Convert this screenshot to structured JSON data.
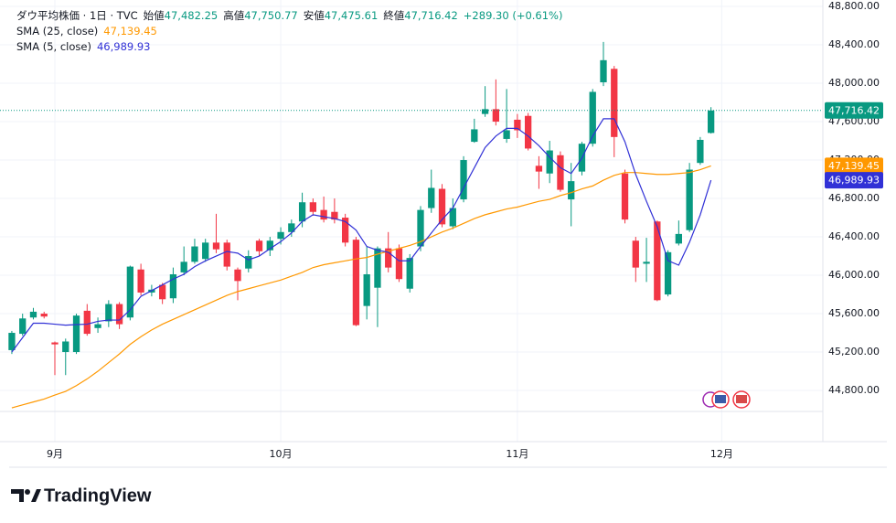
{
  "chart_data": {
    "type": "candlestick",
    "ohlc_legend": {
      "title": "ダウ平均株価 · 1日 · TVC",
      "fields": [
        {
          "label": "始値",
          "value_label": "47,482.25"
        },
        {
          "label": "高値",
          "value_label": "47,750.77"
        },
        {
          "label": "安値",
          "value_label": "47,475.61"
        },
        {
          "label": "終値",
          "value_label": "47,716.42"
        }
      ],
      "change": "+289.30 (+0.61%)"
    },
    "xlim": [
      -1.1,
      75.4
    ],
    "xticks": [
      {
        "value": 4,
        "label": "9月"
      },
      {
        "value": 25,
        "label": "10月"
      },
      {
        "value": 47,
        "label": "11月"
      },
      {
        "value": 66,
        "label": "12月"
      }
    ],
    "ylim": [
      44267,
      48867
    ],
    "yticks": [
      {
        "value": 44800,
        "label": "44,800.00"
      },
      {
        "value": 45200,
        "label": "45,200.00"
      },
      {
        "value": 45600,
        "label": "45,600.00"
      },
      {
        "value": 46000,
        "label": "46,000.00"
      },
      {
        "value": 46400,
        "label": "46,400.00"
      },
      {
        "value": 46800,
        "label": "46,800.00"
      },
      {
        "value": 47200,
        "label": "47,200.00"
      },
      {
        "value": 47600,
        "label": "47,600.00"
      },
      {
        "value": 48000,
        "label": "48,000.00"
      },
      {
        "value": 48400,
        "label": "48,400.00"
      },
      {
        "value": 48800,
        "label": "48,800.00"
      }
    ],
    "grid": true,
    "series": [
      {
        "type": "candlestick",
        "up_color": "#089981",
        "down_color": "#f23645",
        "last_value_label": "47,716.42",
        "open": [
          45220,
          45390,
          45560,
          45600,
          45300,
          45200,
          45200,
          45630,
          45450,
          45520,
          45700,
          45560,
          46060,
          45820,
          45900,
          45760,
          46030,
          46140,
          46170,
          46340,
          46340,
          46060,
          46070,
          46360,
          46260,
          46380,
          46450,
          46560,
          46760,
          46680,
          46660,
          46600,
          46370,
          45680,
          45870,
          46280,
          46280,
          45860,
          46300,
          46700,
          46900,
          46510,
          46790,
          47390,
          47680,
          47730,
          47420,
          47620,
          47660,
          47140,
          47060,
          47250,
          46790,
          47080,
          47370,
          48010,
          48150,
          47060,
          46360,
          46120,
          46560,
          45800,
          46330,
          46470,
          47170,
          47482.25
        ],
        "high": [
          45420,
          45600,
          45660,
          45620,
          45310,
          45340,
          45600,
          45700,
          45560,
          45740,
          45720,
          46100,
          46120,
          45900,
          45920,
          46080,
          46300,
          46380,
          46380,
          46640,
          46370,
          46080,
          46260,
          46380,
          46400,
          46500,
          46580,
          46860,
          46800,
          46820,
          46800,
          46640,
          46400,
          46300,
          46300,
          46450,
          46320,
          46220,
          46720,
          47100,
          46950,
          46800,
          47240,
          47630,
          47970,
          48040,
          47940,
          47680,
          47690,
          47240,
          47400,
          47290,
          47170,
          47390,
          47940,
          48430,
          48180,
          47100,
          46400,
          46390,
          46570,
          46260,
          46570,
          47170,
          47440,
          47750.77
        ],
        "low": [
          45180,
          45370,
          45540,
          45550,
          44960,
          44960,
          45180,
          45370,
          45400,
          45460,
          45440,
          45530,
          45790,
          45780,
          45700,
          45710,
          46000,
          46120,
          46140,
          46230,
          46050,
          45740,
          46030,
          46200,
          46200,
          46320,
          46400,
          46500,
          46620,
          46550,
          46540,
          46300,
          45470,
          45540,
          45460,
          46030,
          45930,
          45820,
          46250,
          46650,
          46500,
          46480,
          46760,
          47380,
          47650,
          47560,
          47380,
          47430,
          47300,
          46900,
          46960,
          46870,
          46510,
          47040,
          47340,
          47970,
          47230,
          46540,
          45930,
          45930,
          45730,
          45780,
          46310,
          46450,
          47150,
          47475.61
        ],
        "close": [
          45400,
          45550,
          45620,
          45570,
          45280,
          45310,
          45580,
          45390,
          45490,
          45700,
          45490,
          46090,
          45820,
          45850,
          45750,
          46010,
          46140,
          46300,
          46340,
          46270,
          46090,
          45940,
          46200,
          46250,
          46360,
          46450,
          46540,
          46760,
          46660,
          46580,
          46580,
          46340,
          45480,
          46010,
          46280,
          46080,
          45960,
          46180,
          46680,
          46910,
          46530,
          46700,
          47200,
          47520,
          47730,
          47600,
          47510,
          47510,
          47320,
          47080,
          47300,
          46890,
          46980,
          47370,
          47910,
          48240,
          47440,
          46580,
          46080,
          46140,
          45740,
          46240,
          46430,
          47100,
          47410,
          47716.42
        ]
      },
      {
        "type": "line",
        "name": "SMA (25, close)",
        "color": "#ff9800",
        "last_value_label": "47,139.45",
        "values": [
          44619,
          44650,
          44680,
          44710,
          44752,
          44790,
          44850,
          44920,
          45000,
          45090,
          45180,
          45280,
          45360,
          45430,
          45490,
          45540,
          45590,
          45640,
          45690,
          45740,
          45790,
          45830,
          45860,
          45890,
          45920,
          45950,
          45990,
          46030,
          46080,
          46110,
          46130,
          46150,
          46170,
          46185,
          46220,
          46250,
          46280,
          46310,
          46350,
          46400,
          46450,
          46490,
          46540,
          46590,
          46630,
          46660,
          46690,
          46710,
          46740,
          46770,
          46790,
          46830,
          46860,
          46900,
          46930,
          46990,
          47040,
          47070,
          47070,
          47060,
          47050,
          47050,
          47060,
          47070,
          47100,
          47139.45
        ]
      },
      {
        "type": "line",
        "name": "SMA (5, close)",
        "color": "#3131d6",
        "last_value_label": "46,989.93",
        "values": [
          45200,
          45350,
          45500,
          45500,
          45490,
          45480,
          45486,
          45490,
          45520,
          45533,
          45533,
          45640,
          45780,
          45840,
          45900,
          45960,
          46010,
          46090,
          46150,
          46200,
          46248,
          46230,
          46160,
          46200,
          46276,
          46350,
          46440,
          46560,
          46630,
          46610,
          46590,
          46560,
          46470,
          46300,
          46260,
          46240,
          46150,
          46150,
          46300,
          46440,
          46580,
          46700,
          46910,
          47120,
          47330,
          47450,
          47530,
          47530,
          47450,
          47350,
          47230,
          47120,
          47060,
          47220,
          47450,
          47630,
          47630,
          47390,
          47050,
          46770,
          46505,
          46152,
          46105,
          46343,
          46629,
          46989.93
        ]
      }
    ]
  },
  "footer": {
    "brand": "TradingView"
  }
}
